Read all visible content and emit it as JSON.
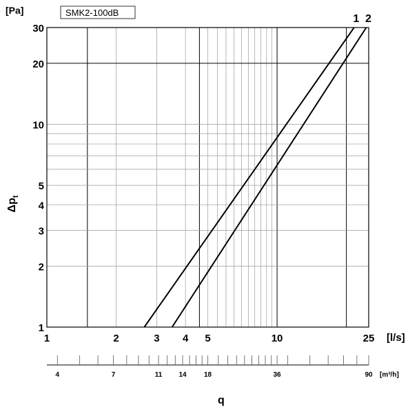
{
  "chart_data": {
    "type": "line",
    "scale": "log-log",
    "badge": "SMK2-100dB",
    "y_unit": "[Pa]",
    "ylabel_main": "Δp",
    "ylabel_sub": "t",
    "x_unit": "[l/s]",
    "x2_unit": "[m³/h]",
    "xlabel": "q",
    "xlim": [
      1,
      25
    ],
    "ylim": [
      1,
      30
    ],
    "grid": true,
    "x_ticks": [
      "1",
      "2",
      "3",
      "4",
      "5",
      "10",
      "25"
    ],
    "y_ticks": [
      "1",
      "2",
      "3",
      "4",
      "5",
      "10",
      "20",
      "30"
    ],
    "x2_ticks": [
      "4",
      "7",
      "11",
      "14",
      "18",
      "36",
      "90"
    ],
    "series": [
      {
        "name": "1",
        "x": [
          2.65,
          21.6
        ],
        "y": [
          1,
          30
        ]
      },
      {
        "name": "2",
        "x": [
          3.5,
          24.4
        ],
        "y": [
          1,
          30
        ]
      }
    ]
  }
}
